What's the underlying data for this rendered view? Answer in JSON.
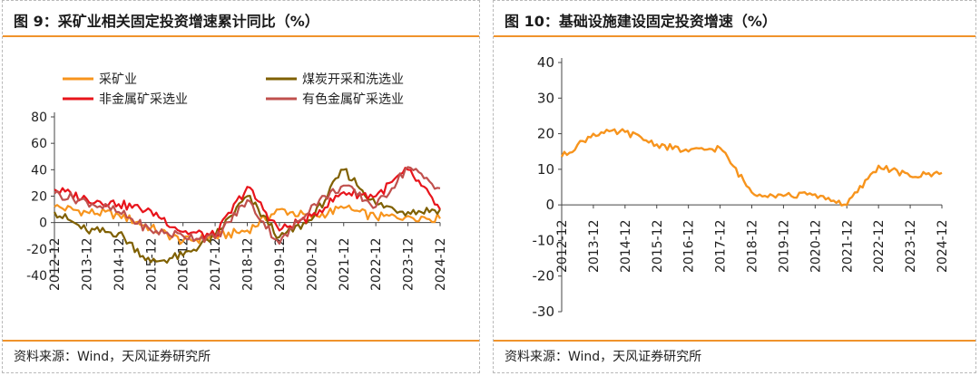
{
  "left": {
    "title": "图 9：采矿业相关固定投资增速累计同比（%）",
    "source": "资料来源：Wind，天风证券研究所"
  },
  "right": {
    "title": "图 10：基础设施建设固定投资增速（%）",
    "source": "资料来源：Wind，天风证券研究所"
  },
  "chart_data": [
    {
      "type": "line",
      "title": "图 9：采矿业相关固定投资增速累计同比（%）",
      "ylim": [
        -40,
        80
      ],
      "yticks": [
        80,
        60,
        40,
        20,
        0,
        -20,
        -40
      ],
      "categories": [
        "2012-12",
        "2013-12",
        "2014-12",
        "2015-12",
        "2016-12",
        "2017-12",
        "2018-12",
        "2019-12",
        "2020-12",
        "2021-12",
        "2022-12",
        "2023-12",
        "2024-12"
      ],
      "legend_position": "top",
      "grid": false,
      "series": [
        {
          "name": "采矿业",
          "color": "#f7941d",
          "values": [
            12,
            8,
            6,
            -4,
            -14,
            -11,
            -6,
            10,
            4,
            11,
            4,
            5,
            3
          ]
        },
        {
          "name": "煤炭开采和洗选业",
          "color": "#7f6000",
          "values": [
            8,
            -6,
            -8,
            -30,
            -25,
            -10,
            20,
            -11,
            2,
            40,
            14,
            8,
            10
          ]
        },
        {
          "name": "非金属矿采选业",
          "color": "#e8141b",
          "values": [
            25,
            18,
            14,
            9,
            -7,
            -10,
            27,
            -6,
            5,
            23,
            20,
            40,
            10
          ]
        },
        {
          "name": "有色金属矿采选业",
          "color": "#c0504d",
          "values": [
            22,
            16,
            8,
            -6,
            -10,
            -12,
            17,
            -16,
            13,
            28,
            12,
            42,
            26
          ]
        }
      ]
    },
    {
      "type": "line",
      "title": "图 10：基础设施建设固定投资增速（%）",
      "ylim": [
        -30,
        40
      ],
      "yticks": [
        40,
        30,
        20,
        10,
        0,
        -10,
        -20,
        -30
      ],
      "categories": [
        "2012-12",
        "2013-12",
        "2014-12",
        "2015-12",
        "2016-12",
        "2017-12",
        "2018-12",
        "2019-12",
        "2020-12",
        "2021-12",
        "2022-12",
        "2023-12",
        "2024-12"
      ],
      "grid": false,
      "series": [
        {
          "color": "#f7941d",
          "values": [
            13.5,
            20,
            20.5,
            17,
            15,
            16,
            3.5,
            2.5,
            3,
            0,
            11,
            8,
            9
          ]
        }
      ]
    }
  ]
}
